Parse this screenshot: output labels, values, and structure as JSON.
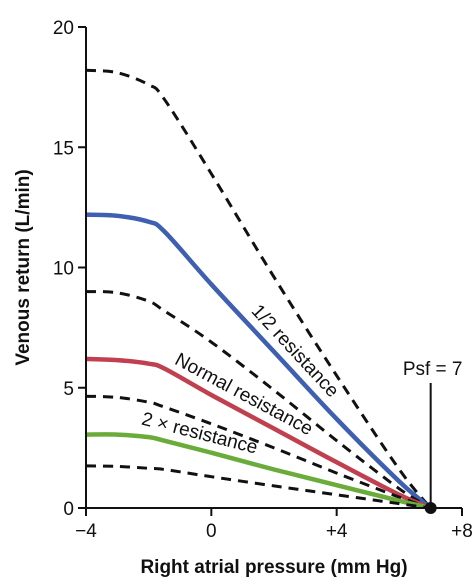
{
  "chart_data": {
    "type": "line",
    "xlabel": "Right atrial pressure (mm Hg)",
    "ylabel": "Venous return (L/min)",
    "xlim": [
      -4,
      8
    ],
    "ylim": [
      0,
      20
    ],
    "xticks": [
      {
        "value": -4,
        "label": "−4"
      },
      {
        "value": 0,
        "label": "0"
      },
      {
        "value": 4,
        "label": "+4"
      },
      {
        "value": 8,
        "label": "+8"
      }
    ],
    "yticks": [
      {
        "value": 0,
        "label": "0"
      },
      {
        "value": 5,
        "label": "5"
      },
      {
        "value": 10,
        "label": "10"
      },
      {
        "value": 15,
        "label": "15"
      },
      {
        "value": 20,
        "label": "20"
      }
    ],
    "grid": false,
    "psf": {
      "x": 7,
      "y": 0,
      "label": "Psf = 7"
    },
    "series": [
      {
        "name": "",
        "style": "dashed",
        "color": "#111111",
        "points": [
          [
            -4,
            18.2
          ],
          [
            -3,
            18.1
          ],
          [
            -2,
            17.6
          ],
          [
            -1.5,
            17.0
          ],
          [
            0,
            13.9
          ],
          [
            2,
            9.6
          ],
          [
            4,
            5.5
          ],
          [
            6,
            1.6
          ],
          [
            7,
            0
          ]
        ]
      },
      {
        "name": "1/2 resistance",
        "style": "solid",
        "color": "#3f5fb0",
        "points": [
          [
            -4,
            12.2
          ],
          [
            -3,
            12.15
          ],
          [
            -2,
            11.9
          ],
          [
            -1.5,
            11.5
          ],
          [
            0,
            9.3
          ],
          [
            2,
            6.5
          ],
          [
            4,
            3.7
          ],
          [
            6,
            1.1
          ],
          [
            7,
            0
          ]
        ]
      },
      {
        "name": "",
        "style": "dashed",
        "color": "#111111",
        "points": [
          [
            -4,
            9.0
          ],
          [
            -3,
            8.95
          ],
          [
            -2,
            8.6
          ],
          [
            -1.5,
            8.2
          ],
          [
            0,
            6.9
          ],
          [
            2,
            4.9
          ],
          [
            4,
            2.8
          ],
          [
            6,
            0.8
          ],
          [
            7,
            0
          ]
        ]
      },
      {
        "name": "Normal resistance",
        "style": "solid",
        "color": "#c0404f",
        "points": [
          [
            -4,
            6.2
          ],
          [
            -3,
            6.15
          ],
          [
            -2,
            6.0
          ],
          [
            -1.5,
            5.8
          ],
          [
            0,
            4.7
          ],
          [
            2,
            3.3
          ],
          [
            4,
            1.9
          ],
          [
            6,
            0.55
          ],
          [
            7,
            0
          ]
        ]
      },
      {
        "name": "",
        "style": "dashed",
        "color": "#111111",
        "points": [
          [
            -4,
            4.65
          ],
          [
            -3,
            4.6
          ],
          [
            -2,
            4.4
          ],
          [
            -1.5,
            4.2
          ],
          [
            0,
            3.5
          ],
          [
            2,
            2.5
          ],
          [
            4,
            1.45
          ],
          [
            6,
            0.45
          ],
          [
            7,
            0
          ]
        ]
      },
      {
        "name": "2 × resistance",
        "style": "solid",
        "color": "#6aac3a",
        "points": [
          [
            -4,
            3.05
          ],
          [
            -3,
            3.05
          ],
          [
            -2,
            2.95
          ],
          [
            -1.5,
            2.8
          ],
          [
            0,
            2.3
          ],
          [
            2,
            1.6
          ],
          [
            4,
            0.95
          ],
          [
            6,
            0.3
          ],
          [
            7,
            0
          ]
        ]
      },
      {
        "name": "",
        "style": "dashed",
        "color": "#111111",
        "points": [
          [
            -4,
            1.75
          ],
          [
            -3,
            1.73
          ],
          [
            -2,
            1.65
          ],
          [
            -1.5,
            1.6
          ],
          [
            0,
            1.3
          ],
          [
            2,
            0.92
          ],
          [
            4,
            0.55
          ],
          [
            6,
            0.18
          ],
          [
            7,
            0
          ]
        ]
      }
    ]
  }
}
